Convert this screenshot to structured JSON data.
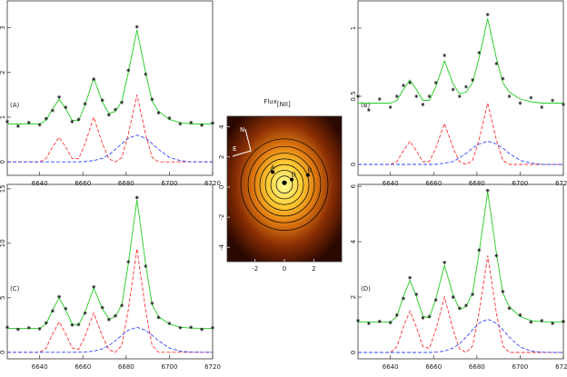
{
  "chart_data": [
    {
      "type": "line",
      "label": "(A)",
      "xlim": [
        6625,
        6720
      ],
      "ylim": [
        -0.3,
        3.6
      ],
      "xticks": [
        6640,
        6660,
        6680,
        6700,
        6720
      ],
      "yticks": [
        0,
        1,
        2,
        3
      ],
      "x": [
        6625,
        6630,
        6635,
        6640,
        6643,
        6646,
        6649,
        6652,
        6655,
        6658,
        6661,
        6665,
        6669,
        6672,
        6675,
        6678,
        6681,
        6685,
        6689,
        6692,
        6695,
        6700,
        6705,
        6710,
        6715,
        6720
      ],
      "series": [
        {
          "color": "#ff3333",
          "style": "dashed",
          "values": [
            0,
            0,
            0,
            0,
            0.08,
            0.34,
            0.55,
            0.34,
            0.08,
            0.07,
            0.41,
            1.0,
            0.41,
            0.07,
            0,
            0.1,
            0.62,
            1.5,
            0.62,
            0.1,
            0,
            0,
            0,
            0,
            0,
            0
          ]
        },
        {
          "color": "#3344ff",
          "style": "dashed",
          "values": [
            0,
            0,
            0,
            0,
            0,
            0,
            0,
            0,
            0,
            0,
            0.01,
            0.03,
            0.08,
            0.16,
            0.28,
            0.41,
            0.53,
            0.6,
            0.53,
            0.41,
            0.28,
            0.1,
            0.03,
            0,
            0,
            0
          ]
        },
        {
          "color": "#22cc22",
          "style": "line",
          "values": [
            0.85,
            0.85,
            0.85,
            0.85,
            0.93,
            1.19,
            1.4,
            1.19,
            0.93,
            0.92,
            1.27,
            1.88,
            1.34,
            1.08,
            1.13,
            1.36,
            2.0,
            2.95,
            2.0,
            1.36,
            1.13,
            0.95,
            0.88,
            0.85,
            0.85,
            0.85
          ]
        },
        {
          "color": "#222222",
          "style": "points",
          "values": [
            0.9,
            0.8,
            0.88,
            0.83,
            0.97,
            1.15,
            1.45,
            1.22,
            0.9,
            0.95,
            1.3,
            1.85,
            1.38,
            1.05,
            1.17,
            1.33,
            2.05,
            3.02,
            1.96,
            1.4,
            1.1,
            0.98,
            0.85,
            0.88,
            0.82,
            0.87
          ]
        }
      ]
    },
    {
      "type": "line",
      "label": "(B)",
      "xlim": [
        6625,
        6720
      ],
      "ylim": [
        -0.08,
        1.2
      ],
      "xticks": [
        6640,
        6660,
        6680,
        6700,
        6720
      ],
      "yticks": [
        0,
        0.5,
        1
      ],
      "x": [
        6625,
        6630,
        6635,
        6640,
        6643,
        6646,
        6649,
        6652,
        6655,
        6658,
        6661,
        6665,
        6669,
        6672,
        6675,
        6678,
        6681,
        6685,
        6689,
        6692,
        6695,
        6700,
        6705,
        6710,
        6715,
        6720
      ],
      "series": [
        {
          "color": "#ff3333",
          "style": "dashed",
          "values": [
            0,
            0,
            0,
            0,
            0.02,
            0.1,
            0.17,
            0.1,
            0.02,
            0.02,
            0.12,
            0.3,
            0.12,
            0.02,
            0,
            0.03,
            0.18,
            0.45,
            0.18,
            0.03,
            0,
            0,
            0,
            0,
            0,
            0
          ]
        },
        {
          "color": "#3344ff",
          "style": "dashed",
          "values": [
            0,
            0,
            0,
            0,
            0,
            0,
            0,
            0,
            0,
            0,
            0,
            0.01,
            0.02,
            0.05,
            0.08,
            0.12,
            0.15,
            0.17,
            0.15,
            0.12,
            0.08,
            0.03,
            0.01,
            0,
            0,
            0
          ]
        },
        {
          "color": "#22cc22",
          "style": "line",
          "values": [
            0.45,
            0.45,
            0.45,
            0.45,
            0.47,
            0.55,
            0.62,
            0.55,
            0.47,
            0.47,
            0.57,
            0.76,
            0.59,
            0.52,
            0.53,
            0.6,
            0.78,
            1.07,
            0.78,
            0.6,
            0.53,
            0.48,
            0.46,
            0.45,
            0.45,
            0.45
          ]
        },
        {
          "color": "#222222",
          "style": "points",
          "values": [
            0.5,
            0.4,
            0.48,
            0.42,
            0.5,
            0.58,
            0.6,
            0.5,
            0.44,
            0.5,
            0.6,
            0.8,
            0.55,
            0.5,
            0.57,
            0.62,
            0.82,
            1.1,
            0.74,
            0.63,
            0.5,
            0.45,
            0.49,
            0.42,
            0.47,
            0.44
          ]
        }
      ]
    },
    {
      "type": "line",
      "label": "(C)",
      "xlim": [
        6625,
        6720
      ],
      "ylim": [
        -0.6,
        15.4
      ],
      "xticks": [
        6640,
        6660,
        6680,
        6700,
        6720
      ],
      "yticks": [
        0,
        5,
        10,
        15
      ],
      "x": [
        6625,
        6630,
        6635,
        6640,
        6643,
        6646,
        6649,
        6652,
        6655,
        6658,
        6661,
        6665,
        6669,
        6672,
        6675,
        6678,
        6681,
        6685,
        6689,
        6692,
        6695,
        6700,
        6705,
        6710,
        6715,
        6720
      ],
      "series": [
        {
          "color": "#ff3333",
          "style": "dashed",
          "values": [
            0,
            0,
            0,
            0,
            0.39,
            1.71,
            2.8,
            1.71,
            0.39,
            0.27,
            1.48,
            3.6,
            1.48,
            0.24,
            0,
            0.63,
            3.9,
            9.5,
            3.9,
            0.63,
            0,
            0,
            0,
            0,
            0,
            0
          ]
        },
        {
          "color": "#3344ff",
          "style": "dashed",
          "values": [
            0,
            0,
            0,
            0,
            0,
            0,
            0,
            0,
            0,
            0.01,
            0.03,
            0.1,
            0.31,
            0.62,
            1.06,
            1.56,
            2.02,
            2.3,
            2.02,
            1.56,
            1.06,
            0.39,
            0.1,
            0.02,
            0,
            0
          ]
        },
        {
          "color": "#22cc22",
          "style": "line",
          "values": [
            2.2,
            2.2,
            2.2,
            2.2,
            2.59,
            3.91,
            5.0,
            3.91,
            2.59,
            2.48,
            3.71,
            5.9,
            3.99,
            3.06,
            3.26,
            4.39,
            8.12,
            14.0,
            8.12,
            4.39,
            3.26,
            2.59,
            2.3,
            2.22,
            2.2,
            2.2
          ]
        },
        {
          "color": "#222222",
          "style": "points",
          "values": [
            2.3,
            2.1,
            2.25,
            2.15,
            2.7,
            3.8,
            5.1,
            4.0,
            2.5,
            2.55,
            3.6,
            6.0,
            4.1,
            3.0,
            3.35,
            4.3,
            8.3,
            14.2,
            7.9,
            4.5,
            3.2,
            2.65,
            2.25,
            2.3,
            2.1,
            2.25
          ]
        }
      ]
    },
    {
      "type": "line",
      "label": "(D)",
      "xlim": [
        6625,
        6720
      ],
      "ylim": [
        -0.23,
        6.07
      ],
      "xticks": [
        6640,
        6660,
        6680,
        6700,
        6720
      ],
      "yticks": [
        0,
        2,
        4,
        6
      ],
      "x": [
        6625,
        6630,
        6635,
        6640,
        6643,
        6646,
        6649,
        6652,
        6655,
        6658,
        6661,
        6665,
        6669,
        6672,
        6675,
        6678,
        6681,
        6685,
        6689,
        6692,
        6695,
        6700,
        6705,
        6710,
        6715,
        6720
      ],
      "series": [
        {
          "color": "#ff3333",
          "style": "dashed",
          "values": [
            0,
            0,
            0,
            0,
            0.21,
            0.92,
            1.5,
            0.92,
            0.21,
            0.15,
            0.82,
            2.0,
            0.82,
            0.13,
            0,
            0.23,
            1.44,
            3.5,
            1.44,
            0.23,
            0,
            0,
            0,
            0,
            0,
            0
          ]
        },
        {
          "color": "#3344ff",
          "style": "dashed",
          "values": [
            0,
            0,
            0,
            0,
            0,
            0,
            0,
            0,
            0,
            0,
            0.01,
            0.05,
            0.16,
            0.32,
            0.55,
            0.82,
            1.06,
            1.2,
            1.06,
            0.82,
            0.55,
            0.2,
            0.05,
            0.01,
            0,
            0
          ]
        },
        {
          "color": "#22cc22",
          "style": "line",
          "values": [
            1.1,
            1.1,
            1.1,
            1.1,
            1.31,
            2.02,
            2.6,
            2.02,
            1.31,
            1.25,
            1.93,
            3.15,
            2.08,
            1.55,
            1.65,
            2.15,
            3.6,
            5.8,
            3.6,
            2.15,
            1.65,
            1.3,
            1.15,
            1.11,
            1.1,
            1.1
          ]
        },
        {
          "color": "#222222",
          "style": "points",
          "values": [
            1.15,
            1.05,
            1.12,
            1.08,
            1.35,
            1.95,
            2.7,
            2.1,
            1.25,
            1.3,
            1.9,
            3.25,
            2.0,
            1.6,
            1.7,
            2.1,
            3.7,
            5.85,
            3.5,
            2.2,
            1.6,
            1.35,
            1.1,
            1.15,
            1.05,
            1.12
          ]
        }
      ]
    },
    {
      "type": "image",
      "title": "Flux",
      "title_sub": "[NII]",
      "xlim": [
        -3.9,
        3.9
      ],
      "ylim": [
        -4.95,
        4.7
      ],
      "xticks": [
        -2,
        0,
        2
      ],
      "yticks": [
        -4,
        -2,
        0,
        2,
        4
      ],
      "compass": [
        "N",
        "E"
      ],
      "points": [
        {
          "label": "A",
          "x": -0.8,
          "y": 1.0
        },
        {
          "label": "B",
          "x": 1.6,
          "y": 0.8
        },
        {
          "label": "D",
          "x": 0.5,
          "y": 0.5
        }
      ]
    }
  ]
}
